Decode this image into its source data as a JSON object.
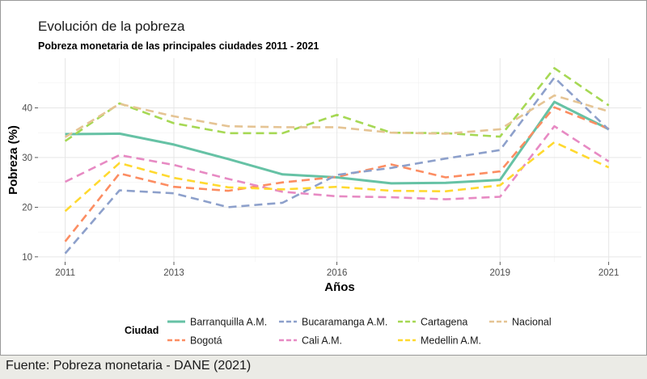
{
  "title": "Evolución de la pobreza",
  "subtitle": "Pobreza monetaria de las principales ciudades 2011 - 2021",
  "caption": "Fuente: Pobreza monetaria - DANE (2021)",
  "chart_data": {
    "type": "line",
    "title": "Evolución de la pobreza",
    "subtitle": "Pobreza monetaria de las principales ciudades 2011 - 2021",
    "xlabel": "Años",
    "ylabel": "Pobreza (%)",
    "x": [
      2011,
      2012,
      2013,
      2014,
      2015,
      2016,
      2017,
      2018,
      2019,
      2020,
      2021
    ],
    "xticks": [
      2011,
      2013,
      2016,
      2019,
      2021
    ],
    "yticks": [
      10,
      20,
      30,
      40
    ],
    "xlim": [
      2010.5,
      2021.6
    ],
    "ylim": [
      9,
      50
    ],
    "grid": true,
    "legend_title": "Ciudad",
    "legend_position": "bottom",
    "series": [
      {
        "name": "Barranquilla A.M.",
        "color": "#66c2a5",
        "dash": "solid",
        "values": [
          34.7,
          34.8,
          32.6,
          29.7,
          26.6,
          26.0,
          24.8,
          24.9,
          25.5,
          41.2,
          35.7
        ]
      },
      {
        "name": "Bogotá",
        "color": "#fc8d62",
        "dash": "dashed",
        "values": [
          13.1,
          26.8,
          24.1,
          23.3,
          25.0,
          26.1,
          28.6,
          26.0,
          27.2,
          40.1,
          35.8
        ]
      },
      {
        "name": "Bucaramanga A.M.",
        "color": "#8da0cb",
        "dash": "dashed",
        "values": [
          10.7,
          23.4,
          22.8,
          20.0,
          20.9,
          26.5,
          27.9,
          29.8,
          31.5,
          46.1,
          35.6
        ]
      },
      {
        "name": "Cali A.M.",
        "color": "#e78ac3",
        "dash": "dashed",
        "values": [
          25.1,
          30.5,
          28.5,
          25.7,
          23.1,
          22.2,
          22.0,
          21.6,
          22.1,
          36.3,
          29.2
        ]
      },
      {
        "name": "Cartagena",
        "color": "#a6d854",
        "dash": "dashed",
        "values": [
          33.3,
          40.9,
          36.9,
          34.9,
          34.9,
          38.6,
          35.0,
          34.9,
          34.2,
          48.0,
          40.5
        ]
      },
      {
        "name": "Medellin A.M.",
        "color": "#ffd92f",
        "dash": "dashed",
        "values": [
          19.2,
          28.9,
          25.9,
          24.0,
          23.6,
          24.1,
          23.3,
          23.2,
          24.4,
          33.1,
          28.0
        ]
      },
      {
        "name": "Nacional",
        "color": "#e5c494",
        "dash": "dashed",
        "values": [
          34.1,
          40.8,
          38.3,
          36.3,
          36.1,
          36.1,
          35.0,
          34.8,
          35.7,
          42.5,
          39.3
        ]
      }
    ]
  }
}
